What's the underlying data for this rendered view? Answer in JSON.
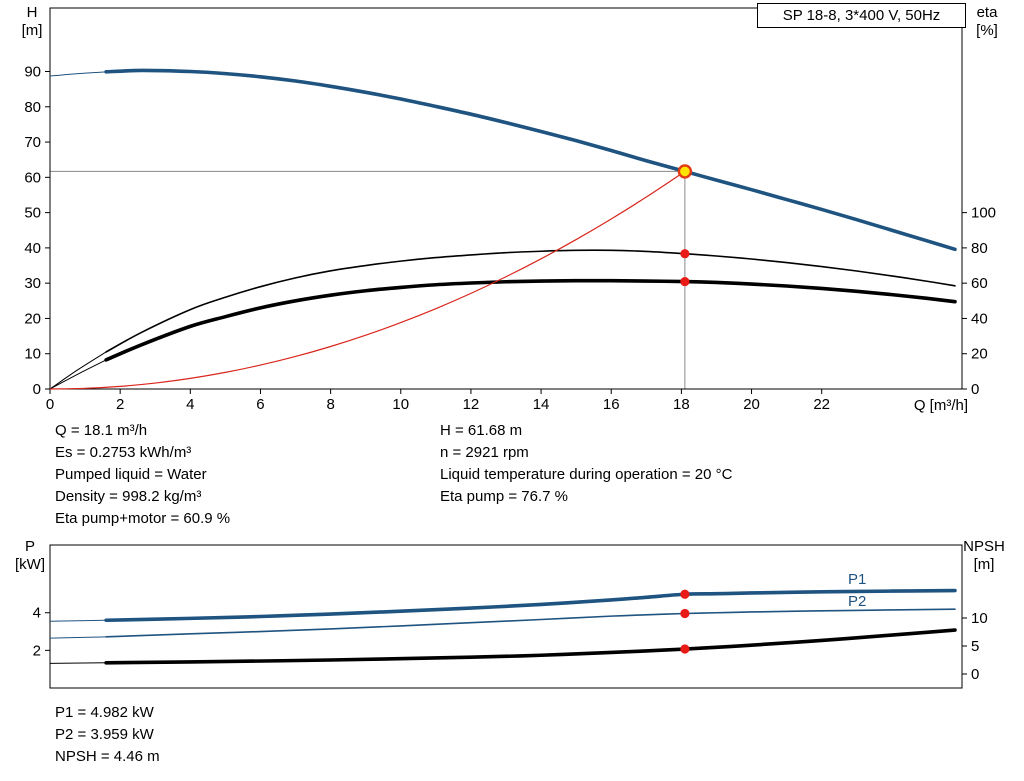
{
  "colors": {
    "curve_blue": "#1f5380",
    "curve_black": "#000000",
    "curve_red": "#d9261c",
    "marker": "#e81b17",
    "duty_fill": "#ffe400",
    "duty_ring": "#e23a12",
    "guide": "#8a8a8a",
    "label_blue": "#1f5380"
  },
  "chart_data": [
    {
      "type": "line",
      "name": "hq-chart",
      "title": "SP 18-8, 3*400 V, 50Hz",
      "x_axis": {
        "label": "Q [m³/h]",
        "min": 0,
        "max": 26,
        "ticks": [
          0,
          2,
          4,
          6,
          8,
          10,
          12,
          14,
          16,
          18,
          20,
          22
        ]
      },
      "y_left": {
        "label": "H",
        "unit": "[m]",
        "min": 0,
        "max": 108,
        "ticks": [
          0,
          10,
          20,
          30,
          40,
          50,
          60,
          70,
          80,
          90
        ]
      },
      "y_right": {
        "label": "eta",
        "unit": "[%]",
        "min": 0,
        "max": 216,
        "ticks": [
          0,
          20,
          40,
          60,
          80,
          100
        ]
      },
      "duty_point": {
        "q": 18.1,
        "h": 61.68
      },
      "series": [
        {
          "name": "head-curve",
          "axis": "left",
          "color": "#1f5380",
          "width": 3.6,
          "thin_until": 1.6,
          "points": [
            [
              0,
              88.7
            ],
            [
              0.8,
              89.4
            ],
            [
              1.6,
              89.9
            ],
            [
              2.6,
              90.3
            ],
            [
              4,
              90.0
            ],
            [
              5,
              89.4
            ],
            [
              6,
              88.5
            ],
            [
              7,
              87.3
            ],
            [
              8,
              85.8
            ],
            [
              9,
              84.1
            ],
            [
              10,
              82.2
            ],
            [
              11,
              80.1
            ],
            [
              12,
              77.9
            ],
            [
              13,
              75.5
            ],
            [
              14,
              73.0
            ],
            [
              15,
              70.4
            ],
            [
              16,
              67.6
            ],
            [
              17,
              64.7
            ],
            [
              18.1,
              61.68
            ],
            [
              19,
              59.2
            ],
            [
              20,
              56.5
            ],
            [
              21,
              53.7
            ],
            [
              22,
              50.9
            ],
            [
              23,
              48.0
            ],
            [
              24,
              45.0
            ],
            [
              25,
              42.0
            ],
            [
              25.8,
              39.6
            ]
          ]
        },
        {
          "name": "eta-pump-curve",
          "axis": "right",
          "color": "#000000",
          "width": 1.6,
          "thin_until": 1.6,
          "points": [
            [
              0,
              0
            ],
            [
              0.8,
              11
            ],
            [
              1.6,
              21
            ],
            [
              2.6,
              32
            ],
            [
              4,
              45
            ],
            [
              5,
              52
            ],
            [
              6,
              58
            ],
            [
              7,
              63
            ],
            [
              8,
              67
            ],
            [
              9,
              70
            ],
            [
              10,
              72.5
            ],
            [
              11,
              74.5
            ],
            [
              12,
              76
            ],
            [
              13,
              77.3
            ],
            [
              14,
              78.1
            ],
            [
              15,
              78.6
            ],
            [
              16,
              78.6
            ],
            [
              17,
              78
            ],
            [
              18.1,
              76.7
            ],
            [
              19,
              75.4
            ],
            [
              20,
              73.7
            ],
            [
              21,
              71.7
            ],
            [
              22,
              69.4
            ],
            [
              23,
              66.9
            ],
            [
              24,
              64.1
            ],
            [
              25,
              61.1
            ],
            [
              25.8,
              58.5
            ]
          ]
        },
        {
          "name": "eta-pump-motor-curve",
          "axis": "right",
          "color": "#000000",
          "width": 3.6,
          "thin_until": 1.6,
          "points": [
            [
              0,
              0
            ],
            [
              0.8,
              8.5
            ],
            [
              1.6,
              16.5
            ],
            [
              2.6,
              25
            ],
            [
              4,
              35.5
            ],
            [
              5,
              41
            ],
            [
              6,
              46
            ],
            [
              7,
              50
            ],
            [
              8,
              53.2
            ],
            [
              9,
              55.7
            ],
            [
              10,
              57.6
            ],
            [
              11,
              59.1
            ],
            [
              12,
              60.1
            ],
            [
              13,
              60.8
            ],
            [
              14,
              61.2
            ],
            [
              15,
              61.4
            ],
            [
              16,
              61.4
            ],
            [
              17,
              61.2
            ],
            [
              18.1,
              60.9
            ],
            [
              19,
              60.4
            ],
            [
              20,
              59.5
            ],
            [
              21,
              58.4
            ],
            [
              22,
              57.0
            ],
            [
              23,
              55.4
            ],
            [
              24,
              53.5
            ],
            [
              25,
              51.4
            ],
            [
              25.8,
              49.5
            ]
          ]
        },
        {
          "name": "system-curve",
          "axis": "left",
          "color": "#d9261c",
          "width": 1.2,
          "points": [
            [
              0,
              0
            ],
            [
              1,
              0.19
            ],
            [
              2,
              0.75
            ],
            [
              3,
              1.69
            ],
            [
              4,
              3.01
            ],
            [
              5,
              4.71
            ],
            [
              6,
              6.78
            ],
            [
              7,
              9.22
            ],
            [
              8,
              12.05
            ],
            [
              9,
              15.25
            ],
            [
              10,
              18.83
            ],
            [
              11,
              22.78
            ],
            [
              12,
              27.11
            ],
            [
              13,
              31.82
            ],
            [
              14,
              36.9
            ],
            [
              15,
              42.36
            ],
            [
              16,
              48.19
            ],
            [
              17,
              54.42
            ],
            [
              18.1,
              61.68
            ]
          ]
        }
      ],
      "markers": [
        {
          "q": 18.1,
          "v": 76.7,
          "axis": "right",
          "style": "dot"
        },
        {
          "q": 18.1,
          "v": 60.9,
          "axis": "right",
          "style": "dot"
        },
        {
          "q": 18.1,
          "v": 61.68,
          "axis": "left",
          "style": "duty"
        }
      ]
    },
    {
      "type": "line",
      "name": "power-npsh-chart",
      "x_axis": {
        "label": "",
        "min": 0,
        "max": 26,
        "ticks": []
      },
      "y_left": {
        "label": "P",
        "unit": "[kW]",
        "min": 0,
        "max": 7.6,
        "ticks": [
          2,
          4
        ]
      },
      "y_right": {
        "label": "NPSH",
        "unit": "[m]",
        "min": -2.5,
        "max": 23.04,
        "ticks": [
          0,
          5,
          10
        ]
      },
      "series_labels": [
        "P1",
        "P2"
      ],
      "series": [
        {
          "name": "p1-curve",
          "axis": "left",
          "color": "#1f5380",
          "width": 3.6,
          "thin_until": 1.6,
          "points": [
            [
              0,
              3.55
            ],
            [
              1.6,
              3.6
            ],
            [
              4,
              3.7
            ],
            [
              6,
              3.8
            ],
            [
              8,
              3.93
            ],
            [
              10,
              4.08
            ],
            [
              12,
              4.25
            ],
            [
              14,
              4.44
            ],
            [
              16,
              4.68
            ],
            [
              17,
              4.82
            ],
            [
              18.1,
              4.982
            ],
            [
              19,
              5.01
            ],
            [
              20,
              5.05
            ],
            [
              22,
              5.11
            ],
            [
              24,
              5.15
            ],
            [
              25.8,
              5.18
            ]
          ]
        },
        {
          "name": "p2-curve",
          "axis": "left",
          "color": "#1f5380",
          "width": 1.6,
          "thin_until": 1.6,
          "points": [
            [
              0,
              2.65
            ],
            [
              1.6,
              2.72
            ],
            [
              4,
              2.88
            ],
            [
              6,
              3.0
            ],
            [
              8,
              3.14
            ],
            [
              10,
              3.3
            ],
            [
              12,
              3.47
            ],
            [
              14,
              3.64
            ],
            [
              16,
              3.82
            ],
            [
              17,
              3.89
            ],
            [
              18.1,
              3.959
            ],
            [
              19,
              4.0
            ],
            [
              20,
              4.04
            ],
            [
              22,
              4.1
            ],
            [
              24,
              4.15
            ],
            [
              25.8,
              4.19
            ]
          ]
        },
        {
          "name": "npsh-curve",
          "axis": "right",
          "color": "#000000",
          "width": 3.6,
          "thin_until": 1.6,
          "points": [
            [
              0,
              1.9
            ],
            [
              1.6,
              2.0
            ],
            [
              4,
              2.15
            ],
            [
              8,
              2.5
            ],
            [
              12,
              3.0
            ],
            [
              14,
              3.35
            ],
            [
              16,
              3.85
            ],
            [
              17,
              4.12
            ],
            [
              18.1,
              4.46
            ],
            [
              20,
              5.15
            ],
            [
              22,
              6.0
            ],
            [
              24,
              6.95
            ],
            [
              25.8,
              7.85
            ]
          ]
        }
      ],
      "markers": [
        {
          "q": 18.1,
          "v": 4.982,
          "axis": "left",
          "style": "dot"
        },
        {
          "q": 18.1,
          "v": 3.959,
          "axis": "left",
          "style": "dot"
        },
        {
          "q": 18.1,
          "v": 4.46,
          "axis": "right",
          "style": "dot"
        }
      ]
    }
  ],
  "info_top_left": {
    "lines": [
      "Q = 18.1 m³/h",
      "Es = 0.2753 kWh/m³",
      "Pumped liquid = Water",
      "Density = 998.2 kg/m³",
      "Eta pump+motor = 60.9 %"
    ]
  },
  "info_top_right": {
    "lines": [
      "H = 61.68 m",
      "n = 2921 rpm",
      "Liquid temperature during operation = 20 °C",
      "Eta pump = 76.7 %"
    ]
  },
  "info_bottom": {
    "lines": [
      "P1 = 4.982 kW",
      "P2 = 3.959 kW",
      "NPSH = 4.46 m"
    ]
  }
}
